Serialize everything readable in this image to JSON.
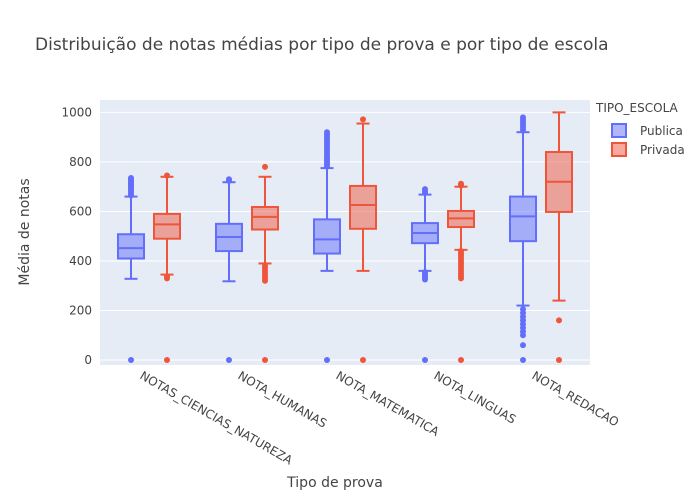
{
  "chart_data": {
    "type": "box",
    "title": "Distribuição de notas médias por tipo de prova e por tipo de escola",
    "xlabel": "Tipo de prova",
    "ylabel": "Média de notas",
    "ylim": [
      -20,
      1050
    ],
    "yticks": [
      0,
      200,
      400,
      600,
      800,
      1000
    ],
    "categories": [
      "NOTAS_CIENCIAS_NATUREZA",
      "NOTA_HUMANAS",
      "NOTA_MATEMATICA",
      "NOTA_LINGUAS",
      "NOTA_REDACAO"
    ],
    "legend": {
      "title": "TIPO_ESCOLA",
      "position": "top-right"
    },
    "grid": true,
    "series": [
      {
        "name": "Publica",
        "color": "#636efa",
        "boxes": [
          {
            "q1": 410,
            "median": 452,
            "q3": 508,
            "whisker_low": 328,
            "whisker_high": 660,
            "outliers": [
              0,
              665,
              672,
              680,
              688,
              695,
              700,
              706,
              712,
              718,
              724,
              730,
              735
            ]
          },
          {
            "q1": 440,
            "median": 497,
            "q3": 550,
            "whisker_low": 318,
            "whisker_high": 718,
            "outliers": [
              0,
              724,
              730
            ]
          },
          {
            "q1": 430,
            "median": 487,
            "q3": 568,
            "whisker_low": 360,
            "whisker_high": 775,
            "outliers": [
              0,
              782,
              790,
              798,
              806,
              814,
              822,
              830,
              840,
              850,
              860,
              870,
              880,
              890,
              900,
              910,
              920
            ]
          },
          {
            "q1": 472,
            "median": 513,
            "q3": 553,
            "whisker_low": 360,
            "whisker_high": 668,
            "outliers": [
              0,
              325,
              332,
              340,
              348,
              355,
              675,
              682,
              690
            ]
          },
          {
            "q1": 480,
            "median": 580,
            "q3": 660,
            "whisker_low": 220,
            "whisker_high": 920,
            "outliers": [
              0,
              60,
              100,
              115,
              130,
              145,
              160,
              175,
              190,
              205,
              930,
              940,
              950,
              960,
              970,
              980
            ]
          }
        ]
      },
      {
        "name": "Privada",
        "color": "#ef553b",
        "boxes": [
          {
            "q1": 490,
            "median": 548,
            "q3": 590,
            "whisker_low": 345,
            "whisker_high": 740,
            "outliers": [
              0,
              330,
              337,
              745
            ]
          },
          {
            "q1": 527,
            "median": 578,
            "q3": 618,
            "whisker_low": 390,
            "whisker_high": 740,
            "outliers": [
              0,
              320,
              330,
              340,
              350,
              360,
              370,
              380,
              780
            ]
          },
          {
            "q1": 530,
            "median": 626,
            "q3": 703,
            "whisker_low": 360,
            "whisker_high": 955,
            "outliers": [
              0,
              972
            ]
          },
          {
            "q1": 537,
            "median": 572,
            "q3": 602,
            "whisker_low": 445,
            "whisker_high": 700,
            "outliers": [
              0,
              330,
              340,
              350,
              360,
              370,
              380,
              390,
              400,
              410,
              420,
              430,
              440,
              705,
              712
            ]
          },
          {
            "q1": 598,
            "median": 720,
            "q3": 840,
            "whisker_low": 240,
            "whisker_high": 1000,
            "outliers": [
              0,
              160
            ]
          }
        ]
      }
    ]
  }
}
